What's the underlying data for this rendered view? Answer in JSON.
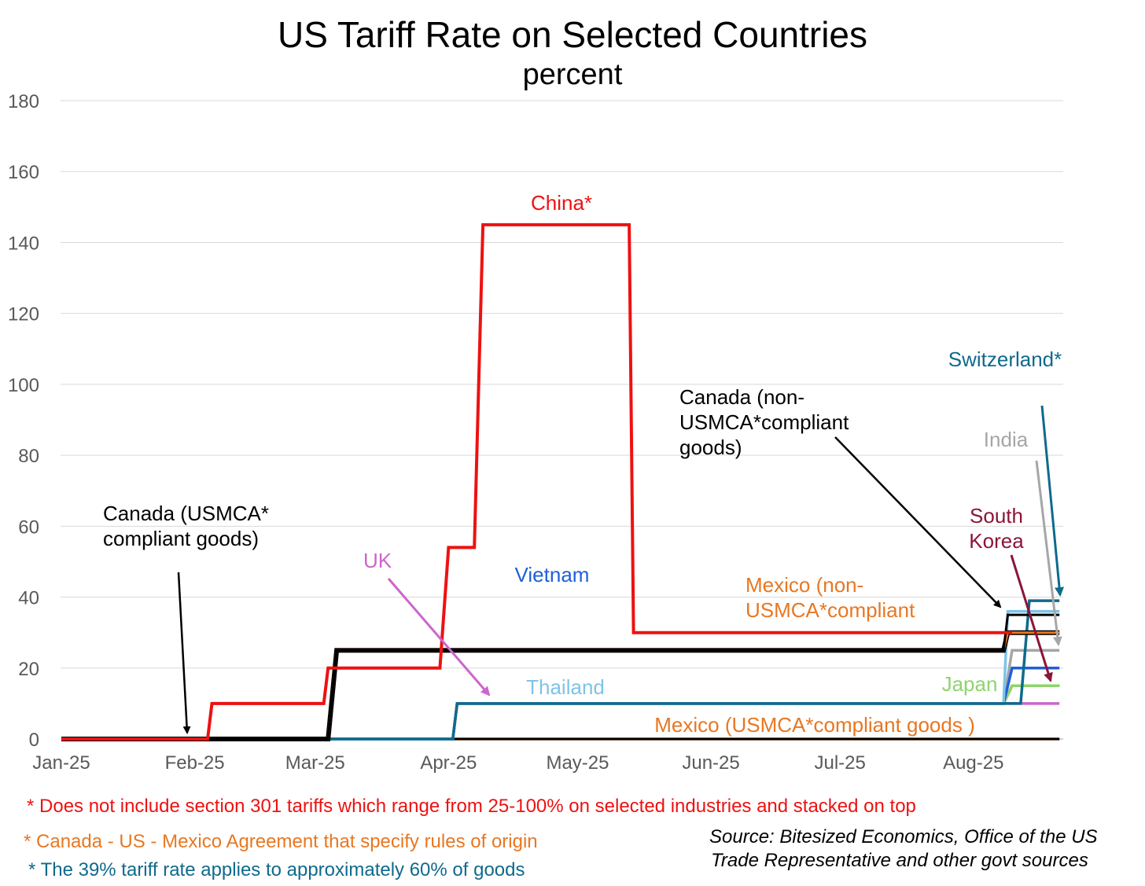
{
  "chart_data": {
    "type": "line",
    "title": "US Tariff Rate on Selected Countries",
    "subtitle": "percent",
    "xlabel": "",
    "ylabel": "",
    "x_tick_labels": [
      "Jan-25",
      "Feb-25",
      "Mar-25",
      "Apr-25",
      "May-25",
      "Jun-25",
      "Jul-25",
      "Aug-25"
    ],
    "y_ticks": [
      0,
      20,
      40,
      60,
      80,
      100,
      120,
      140,
      160,
      180
    ],
    "ylim": [
      0,
      180
    ],
    "x_domain_days": [
      0,
      221
    ],
    "x_unit": "days since 2025-01-01",
    "grid": "horizontal",
    "series": [
      {
        "name": "China*",
        "color": "#ee1111",
        "points": [
          [
            0,
            0
          ],
          [
            34,
            0
          ],
          [
            35,
            10
          ],
          [
            61,
            10
          ],
          [
            62,
            20
          ],
          [
            88,
            20
          ],
          [
            90,
            54
          ],
          [
            96,
            54
          ],
          [
            98,
            145
          ],
          [
            132,
            145
          ],
          [
            133,
            30
          ],
          [
            221,
            30
          ]
        ]
      },
      {
        "name": "Canada (non-USMCA*compliant goods)",
        "color": "#000000",
        "points": [
          [
            0,
            0
          ],
          [
            62,
            0
          ],
          [
            64,
            25
          ],
          [
            219,
            25
          ],
          [
            220,
            35
          ],
          [
            232,
            35
          ]
        ]
      },
      {
        "name": "Mexico (non-USMCA*compliant",
        "color": "#e87722",
        "points": [
          [
            0,
            0
          ],
          [
            62,
            0
          ],
          [
            64,
            25
          ],
          [
            219,
            25
          ],
          [
            220,
            30
          ],
          [
            232,
            30
          ]
        ]
      },
      {
        "name": "Canada (USMCA* compliant goods)",
        "color": "#000000",
        "points": [
          [
            0,
            0
          ],
          [
            232,
            0
          ]
        ]
      },
      {
        "name": "Mexico (USMCA*compliant goods )",
        "color": "#e87722",
        "points": [
          [
            0,
            0
          ],
          [
            232,
            0
          ]
        ]
      },
      {
        "name": "UK",
        "color": "#cc66cc",
        "points": [
          [
            0,
            0
          ],
          [
            91,
            0
          ],
          [
            92,
            10
          ],
          [
            232,
            10
          ]
        ]
      },
      {
        "name": "Vietnam",
        "color": "#1f5fd9",
        "points": [
          [
            0,
            0
          ],
          [
            91,
            0
          ],
          [
            92,
            10
          ],
          [
            219,
            10
          ],
          [
            221,
            20
          ],
          [
            232,
            20
          ]
        ]
      },
      {
        "name": "Thailand",
        "color": "#7ec3e8",
        "points": [
          [
            0,
            0
          ],
          [
            91,
            0
          ],
          [
            92,
            10
          ],
          [
            219,
            10
          ],
          [
            220,
            36
          ],
          [
            232,
            36
          ]
        ]
      },
      {
        "name": "Japan",
        "color": "#8ed46e",
        "points": [
          [
            0,
            0
          ],
          [
            91,
            0
          ],
          [
            92,
            10
          ],
          [
            219,
            10
          ],
          [
            221,
            15
          ],
          [
            232,
            15
          ]
        ]
      },
      {
        "name": "South Korea",
        "color": "#8b1538",
        "points": [
          [
            0,
            0
          ],
          [
            91,
            0
          ],
          [
            92,
            10
          ],
          [
            219,
            10
          ],
          [
            221,
            15
          ],
          [
            232,
            15
          ]
        ]
      },
      {
        "name": "India",
        "color": "#a6a6a6",
        "points": [
          [
            0,
            0
          ],
          [
            91,
            0
          ],
          [
            92,
            10
          ],
          [
            219,
            10
          ],
          [
            221,
            25
          ],
          [
            232,
            25
          ]
        ]
      },
      {
        "name": "Switzerland*",
        "color": "#0f6a8c",
        "points": [
          [
            0,
            0
          ],
          [
            91,
            0
          ],
          [
            92,
            10
          ],
          [
            223,
            10
          ],
          [
            225,
            39
          ],
          [
            232,
            39
          ]
        ]
      }
    ],
    "annotations": {
      "china": "China*",
      "canada_non_line1": "Canada (non-",
      "canada_non_line2": "USMCA*compliant",
      "canada_non_line3": "goods)",
      "canada_usmca_line1": "Canada (USMCA*",
      "canada_usmca_line2": "compliant goods)",
      "uk": "UK",
      "vietnam": "Vietnam",
      "mexico_non_line1": "Mexico (non-",
      "mexico_non_line2": "USMCA*compliant",
      "thailand": "Thailand",
      "japan": "Japan",
      "mexico_usmca": "Mexico (USMCA*compliant goods )",
      "switzerland": "Switzerland*",
      "india": "India",
      "south_korea_line1": "South",
      "south_korea_line2": "Korea"
    },
    "footnotes": {
      "note1": "* Does not include section 301 tariffs which range from 25-100% on selected industries and stacked on top",
      "note2": "* Canada - US - Mexico Agreement that specify rules of origin",
      "note3": "* The 39% tariff rate applies to approximately 60% of goods",
      "source_line1": "Source: Bitesized Economics, Office of the US",
      "source_line2": "Trade Representative and other govt sources"
    }
  }
}
